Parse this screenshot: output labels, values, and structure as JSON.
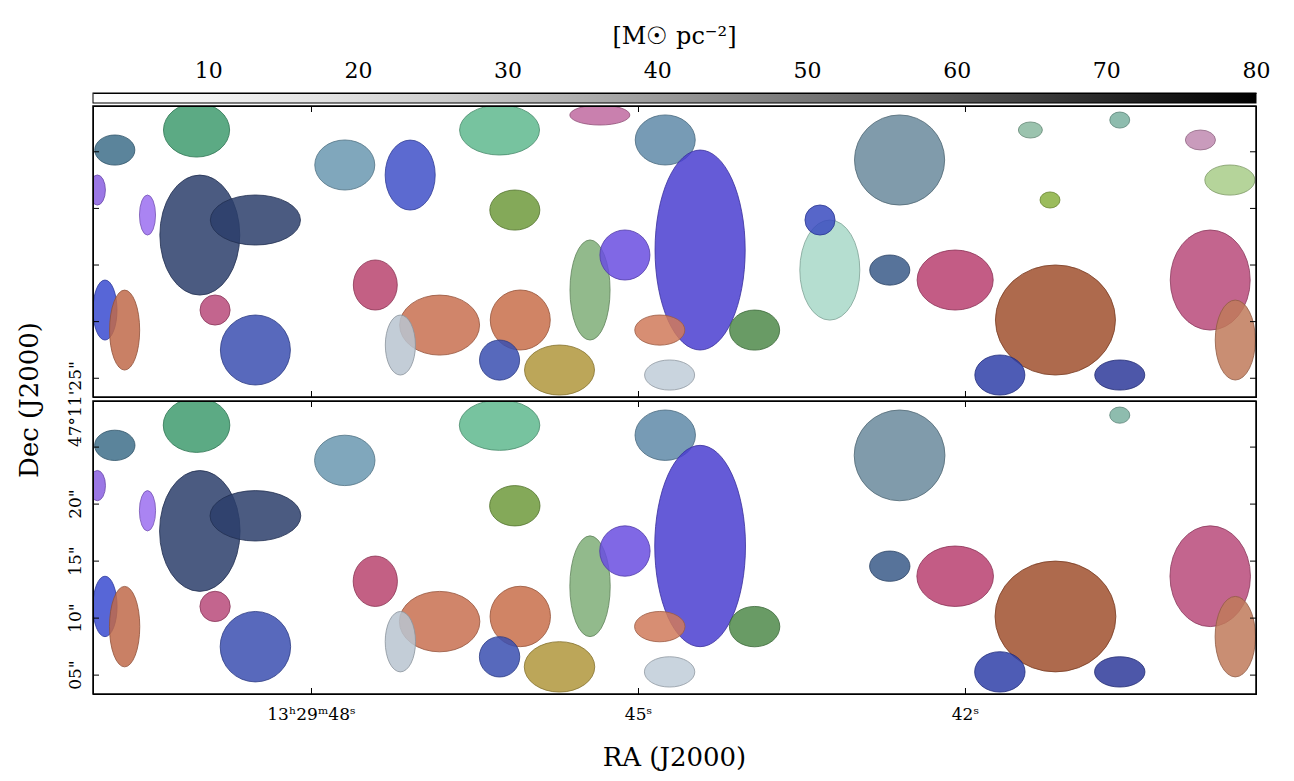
{
  "chart_data": {
    "type": "cloud_map",
    "xlabel": "RA (J2000)",
    "ylabel": "Dec (J2000)",
    "xlim": [
      50.0,
      39.33
    ],
    "xticks": [
      {
        "value": 48,
        "label": "13ʰ29ᵐ48ˢ"
      },
      {
        "value": 45,
        "label": "45ˢ"
      },
      {
        "value": 42,
        "label": "42ˢ"
      }
    ],
    "ylim": [
      3.3,
      29.0
    ],
    "yticks": [
      {
        "value": 25,
        "label": "47°11'25\""
      },
      {
        "value": 20,
        "label": "20\""
      },
      {
        "value": 15,
        "label": "15\""
      },
      {
        "value": 10,
        "label": "10\""
      },
      {
        "value": 5,
        "label": "05\""
      }
    ],
    "colorbar": {
      "label": "[M☉ pc⁻²]",
      "lim": [
        2.3,
        80
      ],
      "ticks": [
        10,
        20,
        30,
        40,
        50,
        60,
        70,
        80
      ]
    },
    "panels": [
      {
        "clouds": [
          {
            "ra": 49.05,
            "dec": 26.88,
            "rx": 2.92,
            "ry": 2.39,
            "color": "#3f9b6e"
          },
          {
            "ra": 49.02,
            "dec": 17.6,
            "rx": 3.53,
            "ry": 5.3,
            "color": "#2c3e6b"
          },
          {
            "ra": 48.51,
            "dec": 18.93,
            "rx": 3.98,
            "ry": 2.21,
            "color": "#2c3e6b"
          },
          {
            "ra": 49.96,
            "dec": 21.58,
            "rx": 0.71,
            "ry": 1.33,
            "color": "#8a5fe0"
          },
          {
            "ra": 49.5,
            "dec": 19.37,
            "rx": 0.71,
            "ry": 1.77,
            "color": "#9b6ef0"
          },
          {
            "ra": 49.89,
            "dec": 10.98,
            "rx": 1.06,
            "ry": 2.65,
            "color": "#3a4bd0"
          },
          {
            "ra": 48.51,
            "dec": 7.45,
            "rx": 3.09,
            "ry": 3.09,
            "color": "#3b4fb0"
          },
          {
            "ra": 49.71,
            "dec": 9.21,
            "rx": 1.33,
            "ry": 3.53,
            "color": "#c06a4a"
          },
          {
            "ra": 48.88,
            "dec": 10.98,
            "rx": 1.33,
            "ry": 1.33,
            "color": "#b84a7a"
          },
          {
            "ra": 49.8,
            "dec": 25.11,
            "rx": 1.77,
            "ry": 1.33,
            "color": "#3e6f8a"
          },
          {
            "ra": 47.69,
            "dec": 23.79,
            "rx": 2.65,
            "ry": 2.21,
            "color": "#6a98b0"
          },
          {
            "ra": 47.09,
            "dec": 22.9,
            "rx": 2.21,
            "ry": 3.09,
            "color": "#4050c8"
          },
          {
            "ra": 47.41,
            "dec": 13.19,
            "rx": 1.94,
            "ry": 2.21,
            "color": "#b8446e"
          },
          {
            "ra": 46.82,
            "dec": 9.65,
            "rx": 3.53,
            "ry": 2.65,
            "color": "#c87050"
          },
          {
            "ra": 47.18,
            "dec": 7.89,
            "rx": 1.33,
            "ry": 2.65,
            "color": "#b8c4d0"
          },
          {
            "ra": 46.27,
            "dec": 26.88,
            "rx": 3.53,
            "ry": 2.21,
            "color": "#5fb88e"
          },
          {
            "ra": 46.13,
            "dec": 19.81,
            "rx": 2.21,
            "ry": 1.77,
            "color": "#6e9a3c"
          },
          {
            "ra": 46.08,
            "dec": 10.1,
            "rx": 2.65,
            "ry": 2.65,
            "color": "#c86e4a"
          },
          {
            "ra": 46.27,
            "dec": 6.56,
            "rx": 1.77,
            "ry": 1.77,
            "color": "#3a4fb0"
          },
          {
            "ra": 45.72,
            "dec": 5.68,
            "rx": 3.09,
            "ry": 2.21,
            "color": "#b0963c"
          },
          {
            "ra": 45.44,
            "dec": 12.75,
            "rx": 1.77,
            "ry": 4.42,
            "color": "#7fae78"
          },
          {
            "ra": 44.75,
            "dec": 26.0,
            "rx": 2.65,
            "ry": 2.21,
            "color": "#5f8aa8"
          },
          {
            "ra": 44.43,
            "dec": 16.28,
            "rx": 3.98,
            "ry": 8.83,
            "color": "#4a3ed0"
          },
          {
            "ra": 45.12,
            "dec": 15.84,
            "rx": 2.21,
            "ry": 2.21,
            "color": "#6a4ee0"
          },
          {
            "ra": 45.35,
            "dec": 28.2,
            "rx": 2.65,
            "ry": 0.88,
            "color": "#c06aa0"
          },
          {
            "ra": 44.8,
            "dec": 9.21,
            "rx": 2.21,
            "ry": 1.33,
            "color": "#d07a5a"
          },
          {
            "ra": 44.71,
            "dec": 5.24,
            "rx": 2.21,
            "ry": 1.33,
            "color": "#c0ccd8"
          },
          {
            "ra": 43.93,
            "dec": 9.21,
            "rx": 2.21,
            "ry": 1.77,
            "color": "#4f8a4a"
          },
          {
            "ra": 43.24,
            "dec": 14.51,
            "rx": 2.65,
            "ry": 4.42,
            "color": "#a8d8c8"
          },
          {
            "ra": 43.33,
            "dec": 18.93,
            "rx": 1.33,
            "ry": 1.33,
            "color": "#3a4bc0"
          },
          {
            "ra": 42.6,
            "dec": 24.23,
            "rx": 3.98,
            "ry": 3.98,
            "color": "#6a8a9c"
          },
          {
            "ra": 42.69,
            "dec": 14.51,
            "rx": 1.77,
            "ry": 1.33,
            "color": "#3a5a88"
          },
          {
            "ra": 42.09,
            "dec": 13.63,
            "rx": 3.36,
            "ry": 2.65,
            "color": "#b84070"
          },
          {
            "ra": 41.17,
            "dec": 10.1,
            "rx": 5.3,
            "ry": 4.86,
            "color": "#a0502e"
          },
          {
            "ra": 41.68,
            "dec": 5.24,
            "rx": 2.21,
            "ry": 1.77,
            "color": "#2f3fa8"
          },
          {
            "ra": 40.58,
            "dec": 5.24,
            "rx": 2.21,
            "ry": 1.33,
            "color": "#2e3a9a"
          },
          {
            "ra": 41.22,
            "dec": 20.7,
            "rx": 0.88,
            "ry": 0.71,
            "color": "#8ab040"
          },
          {
            "ra": 39.75,
            "dec": 13.63,
            "rx": 3.53,
            "ry": 4.42,
            "color": "#b84a7a"
          },
          {
            "ra": 39.57,
            "dec": 22.46,
            "rx": 2.21,
            "ry": 1.33,
            "color": "#a8cc88"
          },
          {
            "ra": 39.84,
            "dec": 26.0,
            "rx": 1.33,
            "ry": 0.88,
            "color": "#c08ab0"
          },
          {
            "ra": 39.52,
            "dec": 8.33,
            "rx": 1.77,
            "ry": 3.53,
            "color": "#c07a5a"
          },
          {
            "ra": 40.58,
            "dec": 27.76,
            "rx": 0.88,
            "ry": 0.71,
            "color": "#7ab0a0"
          },
          {
            "ra": 41.4,
            "dec": 26.88,
            "rx": 1.06,
            "ry": 0.71,
            "color": "#8ab8a0"
          }
        ]
      },
      {
        "clouds": [
          {
            "ra": 49.05,
            "dec": 26.88,
            "rx": 2.92,
            "ry": 2.39,
            "color": "#3f9b6e"
          },
          {
            "ra": 49.02,
            "dec": 17.6,
            "rx": 3.53,
            "ry": 5.3,
            "color": "#2c3e6b"
          },
          {
            "ra": 48.51,
            "dec": 18.93,
            "rx": 3.98,
            "ry": 2.21,
            "color": "#2c3e6b"
          },
          {
            "ra": 49.96,
            "dec": 21.58,
            "rx": 0.71,
            "ry": 1.33,
            "color": "#8a5fe0"
          },
          {
            "ra": 49.5,
            "dec": 19.37,
            "rx": 0.71,
            "ry": 1.77,
            "color": "#9b6ef0"
          },
          {
            "ra": 49.89,
            "dec": 10.98,
            "rx": 1.06,
            "ry": 2.65,
            "color": "#3a4bd0"
          },
          {
            "ra": 48.51,
            "dec": 7.45,
            "rx": 3.09,
            "ry": 3.09,
            "color": "#3b4fb0"
          },
          {
            "ra": 49.71,
            "dec": 9.21,
            "rx": 1.33,
            "ry": 3.53,
            "color": "#c06a4a"
          },
          {
            "ra": 48.88,
            "dec": 10.98,
            "rx": 1.33,
            "ry": 1.33,
            "color": "#b84a7a"
          },
          {
            "ra": 49.8,
            "dec": 25.11,
            "rx": 1.77,
            "ry": 1.33,
            "color": "#3e6f8a"
          },
          {
            "ra": 47.69,
            "dec": 23.79,
            "rx": 2.65,
            "ry": 2.21,
            "color": "#6a98b0"
          },
          {
            "ra": 47.41,
            "dec": 13.19,
            "rx": 1.94,
            "ry": 2.21,
            "color": "#b8446e"
          },
          {
            "ra": 46.82,
            "dec": 9.65,
            "rx": 3.53,
            "ry": 2.65,
            "color": "#c87050"
          },
          {
            "ra": 47.18,
            "dec": 7.89,
            "rx": 1.33,
            "ry": 2.65,
            "color": "#b8c4d0"
          },
          {
            "ra": 46.27,
            "dec": 26.88,
            "rx": 3.53,
            "ry": 2.21,
            "color": "#5fb88e"
          },
          {
            "ra": 46.13,
            "dec": 19.81,
            "rx": 2.21,
            "ry": 1.77,
            "color": "#6e9a3c"
          },
          {
            "ra": 46.08,
            "dec": 10.1,
            "rx": 2.65,
            "ry": 2.65,
            "color": "#c86e4a"
          },
          {
            "ra": 46.27,
            "dec": 6.56,
            "rx": 1.77,
            "ry": 1.77,
            "color": "#3a4fb0"
          },
          {
            "ra": 45.72,
            "dec": 5.68,
            "rx": 3.09,
            "ry": 2.21,
            "color": "#b0963c"
          },
          {
            "ra": 45.44,
            "dec": 12.75,
            "rx": 1.77,
            "ry": 4.42,
            "color": "#7fae78"
          },
          {
            "ra": 44.75,
            "dec": 26.0,
            "rx": 2.65,
            "ry": 2.21,
            "color": "#5f8aa8"
          },
          {
            "ra": 44.43,
            "dec": 16.28,
            "rx": 3.98,
            "ry": 8.83,
            "color": "#4a3ed0"
          },
          {
            "ra": 45.12,
            "dec": 15.84,
            "rx": 2.21,
            "ry": 2.21,
            "color": "#6a4ee0"
          },
          {
            "ra": 44.8,
            "dec": 9.21,
            "rx": 2.21,
            "ry": 1.33,
            "color": "#d07a5a"
          },
          {
            "ra": 44.71,
            "dec": 5.24,
            "rx": 2.21,
            "ry": 1.33,
            "color": "#c0ccd8"
          },
          {
            "ra": 43.93,
            "dec": 9.21,
            "rx": 2.21,
            "ry": 1.77,
            "color": "#4f8a4a"
          },
          {
            "ra": 42.6,
            "dec": 24.23,
            "rx": 3.98,
            "ry": 3.98,
            "color": "#6a8a9c"
          },
          {
            "ra": 42.69,
            "dec": 14.51,
            "rx": 1.77,
            "ry": 1.33,
            "color": "#3a5a88"
          },
          {
            "ra": 42.09,
            "dec": 13.63,
            "rx": 3.36,
            "ry": 2.65,
            "color": "#b84070"
          },
          {
            "ra": 41.17,
            "dec": 10.1,
            "rx": 5.3,
            "ry": 4.86,
            "color": "#a0502e"
          },
          {
            "ra": 41.68,
            "dec": 5.24,
            "rx": 2.21,
            "ry": 1.77,
            "color": "#2f3fa8"
          },
          {
            "ra": 40.58,
            "dec": 5.24,
            "rx": 2.21,
            "ry": 1.33,
            "color": "#2e3a9a"
          },
          {
            "ra": 39.75,
            "dec": 13.63,
            "rx": 3.53,
            "ry": 4.42,
            "color": "#b84a7a"
          },
          {
            "ra": 39.52,
            "dec": 8.33,
            "rx": 1.77,
            "ry": 3.53,
            "color": "#c07a5a"
          },
          {
            "ra": 40.58,
            "dec": 27.76,
            "rx": 0.88,
            "ry": 0.71,
            "color": "#7ab0a0"
          }
        ]
      }
    ]
  }
}
